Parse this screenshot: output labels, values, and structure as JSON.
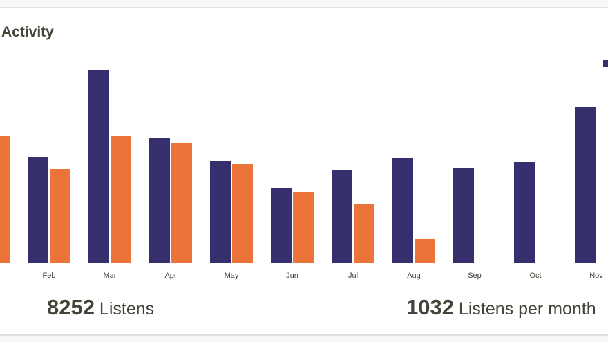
{
  "card": {
    "title": "Activity"
  },
  "chart_data": {
    "type": "bar",
    "categories": [
      null,
      "Feb",
      "Mar",
      "Apr",
      "May",
      "Jun",
      "Jul",
      "Aug",
      "Sep",
      "Oct",
      "Nov"
    ],
    "series": [
      {
        "color": "#362f6e",
        "values": [
          null,
          154,
          280,
          182,
          149,
          109,
          135,
          153,
          138,
          147,
          227
        ]
      },
      {
        "color": "#eb743b",
        "values": [
          185,
          137,
          185,
          175,
          144,
          103,
          86,
          36,
          null,
          null,
          null
        ]
      }
    ]
  },
  "stats": [
    {
      "value": "8252",
      "label": "Listens"
    },
    {
      "value": "1032",
      "label": "Listens per month"
    }
  ]
}
